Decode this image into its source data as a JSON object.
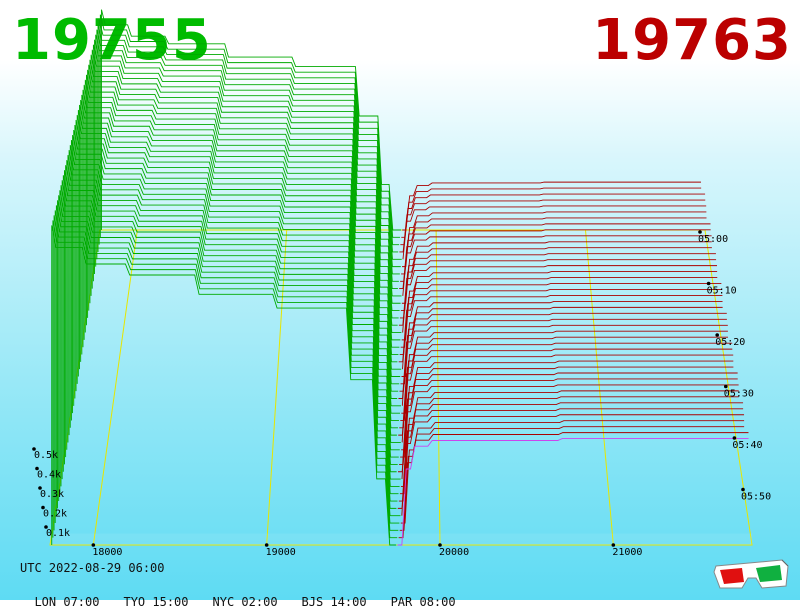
{
  "header": {
    "bid_price": "19755",
    "ask_price": "19763",
    "bid_color": "#00bb00",
    "ask_color": "#bb0000"
  },
  "footer": {
    "utc_label": "UTC 2022-08-29 06:00",
    "cities": [
      {
        "label": "LON 07:00"
      },
      {
        "label": "TYO 15:00"
      },
      {
        "label": "NYC 02:00"
      },
      {
        "label": "BJS 14:00"
      },
      {
        "label": "PAR 08:00"
      }
    ],
    "glasses_icon": "3d-glasses-icon"
  },
  "chart_data": {
    "type": "area",
    "style": "3d-waterfall-order-book",
    "x_axis": {
      "ticks": [
        "18000",
        "19000",
        "20000",
        "21000"
      ],
      "range": [
        17750,
        21800
      ]
    },
    "z_axis": {
      "ticks": [
        "0.1k",
        "0.2k",
        "0.3k",
        "0.4k",
        "0.5k"
      ],
      "range": [
        0,
        500
      ]
    },
    "time_axis": {
      "ticks": [
        "05:00",
        "05:10",
        "05:20",
        "05:30",
        "05:40",
        "05:50"
      ]
    },
    "mid_price": 19759,
    "bid_color": "#00aa00",
    "ask_color": "#aa0000",
    "grid_color": "#e6e600",
    "snapshot_count": 44,
    "bid_levels": [
      {
        "price": 17780,
        "depth": 580
      },
      {
        "price": 17950,
        "depth": 540
      },
      {
        "price": 18200,
        "depth": 510
      },
      {
        "price": 18600,
        "depth": 490
      },
      {
        "price": 19050,
        "depth": 455
      },
      {
        "price": 19480,
        "depth": 430
      },
      {
        "price": 19620,
        "depth": 300
      },
      {
        "price": 19700,
        "depth": 120
      },
      {
        "price": 19755,
        "depth": 0
      }
    ],
    "ask_levels": [
      {
        "price": 19763,
        "depth": 0
      },
      {
        "price": 19800,
        "depth": 200
      },
      {
        "price": 19850,
        "depth": 260
      },
      {
        "price": 19950,
        "depth": 275
      },
      {
        "price": 20700,
        "depth": 280
      },
      {
        "price": 21800,
        "depth": 285
      }
    ]
  }
}
